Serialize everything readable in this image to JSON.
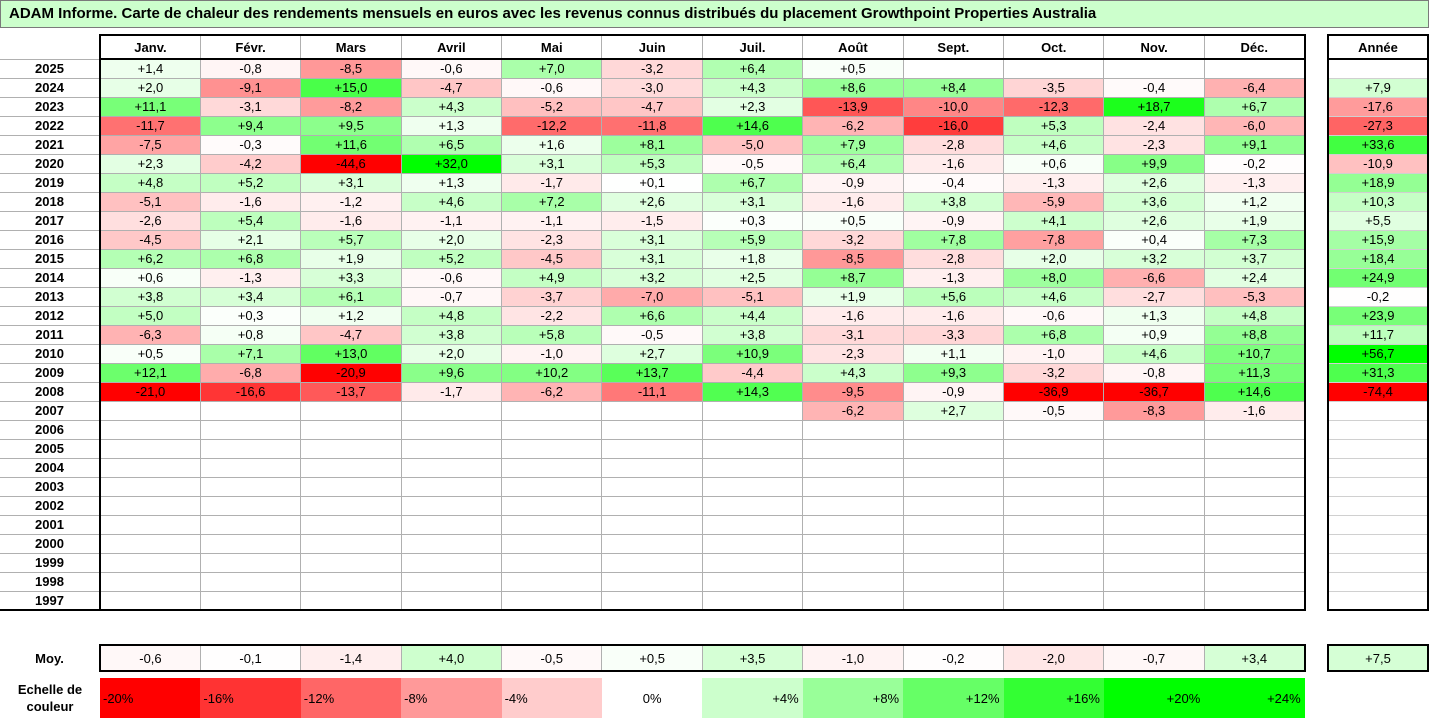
{
  "title": "ADAM Informe. Carte de chaleur des rendements mensuels en euros avec les revenus connus distribués du placement Growthpoint Properties Australia",
  "chart_data": {
    "type": "heatmap",
    "title": "ADAM Informe. Carte de chaleur des rendements mensuels en euros avec les revenus connus distribués du placement Growthpoint Properties Australia",
    "months": [
      "Janv.",
      "Févr.",
      "Mars",
      "Avril",
      "Mai",
      "Juin",
      "Juil.",
      "Août",
      "Sept.",
      "Oct.",
      "Nov.",
      "Déc."
    ],
    "year_header": "Année",
    "rows": [
      {
        "year": "2025",
        "values": [
          "+1,4",
          "-0,8",
          "-8,5",
          "-0,6",
          "+7,0",
          "-3,2",
          "+6,4",
          "+0,5",
          "",
          "",
          "",
          ""
        ],
        "annual": ""
      },
      {
        "year": "2024",
        "values": [
          "+2,0",
          "-9,1",
          "+15,0",
          "-4,7",
          "-0,6",
          "-3,0",
          "+4,3",
          "+8,6",
          "+8,4",
          "-3,5",
          "-0,4",
          "-6,4"
        ],
        "annual": "+7,9"
      },
      {
        "year": "2023",
        "values": [
          "+11,1",
          "-3,1",
          "-8,2",
          "+4,3",
          "-5,2",
          "-4,7",
          "+2,3",
          "-13,9",
          "-10,0",
          "-12,3",
          "+18,7",
          "+6,7"
        ],
        "annual": "-17,6"
      },
      {
        "year": "2022",
        "values": [
          "-11,7",
          "+9,4",
          "+9,5",
          "+1,3",
          "-12,2",
          "-11,8",
          "+14,6",
          "-6,2",
          "-16,0",
          "+5,3",
          "-2,4",
          "-6,0"
        ],
        "annual": "-27,3"
      },
      {
        "year": "2021",
        "values": [
          "-7,5",
          "-0,3",
          "+11,6",
          "+6,5",
          "+1,6",
          "+8,1",
          "-5,0",
          "+7,9",
          "-2,8",
          "+4,6",
          "-2,3",
          "+9,1"
        ],
        "annual": "+33,6"
      },
      {
        "year": "2020",
        "values": [
          "+2,3",
          "-4,2",
          "-44,6",
          "+32,0",
          "+3,1",
          "+5,3",
          "-0,5",
          "+6,4",
          "-1,6",
          "+0,6",
          "+9,9",
          "-0,2"
        ],
        "annual": "-10,9"
      },
      {
        "year": "2019",
        "values": [
          "+4,8",
          "+5,2",
          "+3,1",
          "+1,3",
          "-1,7",
          "+0,1",
          "+6,7",
          "-0,9",
          "-0,4",
          "-1,3",
          "+2,6",
          "-1,3"
        ],
        "annual": "+18,9"
      },
      {
        "year": "2018",
        "values": [
          "-5,1",
          "-1,6",
          "-1,2",
          "+4,6",
          "+7,2",
          "+2,6",
          "+3,1",
          "-1,6",
          "+3,8",
          "-5,9",
          "+3,6",
          "+1,2"
        ],
        "annual": "+10,3"
      },
      {
        "year": "2017",
        "values": [
          "-2,6",
          "+5,4",
          "-1,6",
          "-1,1",
          "-1,1",
          "-1,5",
          "+0,3",
          "+0,5",
          "-0,9",
          "+4,1",
          "+2,6",
          "+1,9"
        ],
        "annual": "+5,5"
      },
      {
        "year": "2016",
        "values": [
          "-4,5",
          "+2,1",
          "+5,7",
          "+2,0",
          "-2,3",
          "+3,1",
          "+5,9",
          "-3,2",
          "+7,8",
          "-7,8",
          "+0,4",
          "+7,3"
        ],
        "annual": "+15,9"
      },
      {
        "year": "2015",
        "values": [
          "+6,2",
          "+6,8",
          "+1,9",
          "+5,2",
          "-4,5",
          "+3,1",
          "+1,8",
          "-8,5",
          "-2,8",
          "+2,0",
          "+3,2",
          "+3,7"
        ],
        "annual": "+18,4"
      },
      {
        "year": "2014",
        "values": [
          "+0,6",
          "-1,3",
          "+3,3",
          "-0,6",
          "+4,9",
          "+3,2",
          "+2,5",
          "+8,7",
          "-1,3",
          "+8,0",
          "-6,6",
          "+2,4"
        ],
        "annual": "+24,9"
      },
      {
        "year": "2013",
        "values": [
          "+3,8",
          "+3,4",
          "+6,1",
          "-0,7",
          "-3,7",
          "-7,0",
          "-5,1",
          "+1,9",
          "+5,6",
          "+4,6",
          "-2,7",
          "-5,3"
        ],
        "annual": "-0,2"
      },
      {
        "year": "2012",
        "values": [
          "+5,0",
          "+0,3",
          "+1,2",
          "+4,8",
          "-2,2",
          "+6,6",
          "+4,4",
          "-1,6",
          "-1,6",
          "-0,6",
          "+1,3",
          "+4,8"
        ],
        "annual": "+23,9"
      },
      {
        "year": "2011",
        "values": [
          "-6,3",
          "+0,8",
          "-4,7",
          "+3,8",
          "+5,8",
          "-0,5",
          "+3,8",
          "-3,1",
          "-3,3",
          "+6,8",
          "+0,9",
          "+8,8"
        ],
        "annual": "+11,7"
      },
      {
        "year": "2010",
        "values": [
          "+0,5",
          "+7,1",
          "+13,0",
          "+2,0",
          "-1,0",
          "+2,7",
          "+10,9",
          "-2,3",
          "+1,1",
          "-1,0",
          "+4,6",
          "+10,7"
        ],
        "annual": "+56,7"
      },
      {
        "year": "2009",
        "values": [
          "+12,1",
          "-6,8",
          "-20,9",
          "+9,6",
          "+10,2",
          "+13,7",
          "-4,4",
          "+4,3",
          "+9,3",
          "-3,2",
          "-0,8",
          "+11,3"
        ],
        "annual": "+31,3"
      },
      {
        "year": "2008",
        "values": [
          "-21,0",
          "-16,6",
          "-13,7",
          "-1,7",
          "-6,2",
          "-11,1",
          "+14,3",
          "-9,5",
          "-0,9",
          "-36,9",
          "-36,7",
          "+14,6"
        ],
        "annual": "-74,4"
      },
      {
        "year": "2007",
        "values": [
          "",
          "",
          "",
          "",
          "",
          "",
          "",
          "-6,2",
          "+2,7",
          "-0,5",
          "-8,3",
          "-1,6"
        ],
        "annual": ""
      },
      {
        "year": "2006",
        "values": [
          "",
          "",
          "",
          "",
          "",
          "",
          "",
          "",
          "",
          "",
          "",
          ""
        ],
        "annual": ""
      },
      {
        "year": "2005",
        "values": [
          "",
          "",
          "",
          "",
          "",
          "",
          "",
          "",
          "",
          "",
          "",
          ""
        ],
        "annual": ""
      },
      {
        "year": "2004",
        "values": [
          "",
          "",
          "",
          "",
          "",
          "",
          "",
          "",
          "",
          "",
          "",
          ""
        ],
        "annual": ""
      },
      {
        "year": "2003",
        "values": [
          "",
          "",
          "",
          "",
          "",
          "",
          "",
          "",
          "",
          "",
          "",
          ""
        ],
        "annual": ""
      },
      {
        "year": "2002",
        "values": [
          "",
          "",
          "",
          "",
          "",
          "",
          "",
          "",
          "",
          "",
          "",
          ""
        ],
        "annual": ""
      },
      {
        "year": "2001",
        "values": [
          "",
          "",
          "",
          "",
          "",
          "",
          "",
          "",
          "",
          "",
          "",
          ""
        ],
        "annual": ""
      },
      {
        "year": "2000",
        "values": [
          "",
          "",
          "",
          "",
          "",
          "",
          "",
          "",
          "",
          "",
          "",
          ""
        ],
        "annual": ""
      },
      {
        "year": "1999",
        "values": [
          "",
          "",
          "",
          "",
          "",
          "",
          "",
          "",
          "",
          "",
          "",
          ""
        ],
        "annual": ""
      },
      {
        "year": "1998",
        "values": [
          "",
          "",
          "",
          "",
          "",
          "",
          "",
          "",
          "",
          "",
          "",
          ""
        ],
        "annual": ""
      },
      {
        "year": "1997",
        "values": [
          "",
          "",
          "",
          "",
          "",
          "",
          "",
          "",
          "",
          "",
          "",
          ""
        ],
        "annual": ""
      }
    ],
    "average": {
      "label": "Moy.",
      "values": [
        "-0,6",
        "-0,1",
        "-1,4",
        "+4,0",
        "-0,5",
        "+0,5",
        "+3,5",
        "-1,0",
        "-0,2",
        "-2,0",
        "-0,7",
        "+3,4"
      ],
      "annual": "+7,5"
    },
    "scale": {
      "label": "Echelle de couleur",
      "steps": [
        "-20%",
        "-16%",
        "-12%",
        "-8%",
        "-4%",
        "0%",
        "+4%",
        "+8%",
        "+12%",
        "+16%",
        "+20%",
        "+24%"
      ],
      "step_values": [
        -20,
        -16,
        -12,
        -8,
        -4,
        0,
        4,
        8,
        12,
        16,
        20,
        24
      ]
    },
    "colors": {
      "neg_max": "#ff0000",
      "neutral": "#ffffff",
      "pos_max": "#00ff00",
      "title_bg": "#ccffcc"
    }
  }
}
